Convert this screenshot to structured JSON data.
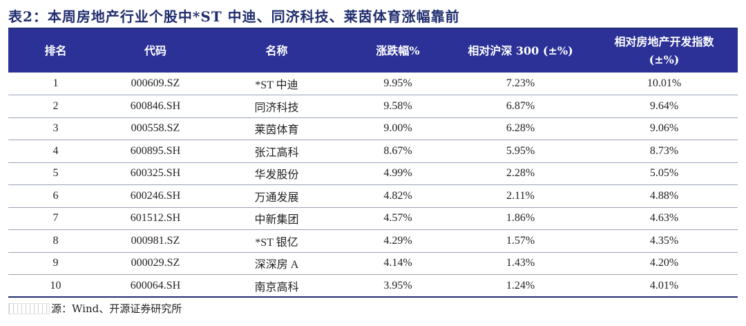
{
  "caption": "表2：本周房地产行业个股中*ST 中迪、同济科技、莱茵体育涨幅靠前",
  "table": {
    "headers": {
      "rank": "排名",
      "code": "代码",
      "name": "名称",
      "change": "涨跌幅%",
      "vs_hs300": "相对沪深 300 (±%)",
      "vs_index_line1": "相对房地产开发指数",
      "vs_index_line2": "(±%)"
    },
    "rows": [
      {
        "rank": "1",
        "code": "000609.SZ",
        "name": "*ST 中迪",
        "change": "9.95%",
        "vs_hs300": "7.23%",
        "vs_index": "10.01%"
      },
      {
        "rank": "2",
        "code": "600846.SH",
        "name": "同济科技",
        "change": "9.58%",
        "vs_hs300": "6.87%",
        "vs_index": "9.64%"
      },
      {
        "rank": "3",
        "code": "000558.SZ",
        "name": "莱茵体育",
        "change": "9.00%",
        "vs_hs300": "6.28%",
        "vs_index": "9.06%"
      },
      {
        "rank": "4",
        "code": "600895.SH",
        "name": "张江高科",
        "change": "8.67%",
        "vs_hs300": "5.95%",
        "vs_index": "8.73%"
      },
      {
        "rank": "5",
        "code": "600325.SH",
        "name": "华发股份",
        "change": "4.99%",
        "vs_hs300": "2.28%",
        "vs_index": "5.05%"
      },
      {
        "rank": "6",
        "code": "600246.SH",
        "name": "万通发展",
        "change": "4.82%",
        "vs_hs300": "2.11%",
        "vs_index": "4.88%"
      },
      {
        "rank": "7",
        "code": "601512.SH",
        "name": "中新集团",
        "change": "4.57%",
        "vs_hs300": "1.86%",
        "vs_index": "4.63%"
      },
      {
        "rank": "8",
        "code": "000981.SZ",
        "name": "*ST 银亿",
        "change": "4.29%",
        "vs_hs300": "1.57%",
        "vs_index": "4.35%"
      },
      {
        "rank": "9",
        "code": "000029.SZ",
        "name": "深深房 A",
        "change": "4.14%",
        "vs_hs300": "1.43%",
        "vs_index": "4.20%"
      },
      {
        "rank": "10",
        "code": "600064.SH",
        "name": "南京高科",
        "change": "3.95%",
        "vs_hs300": "1.24%",
        "vs_index": "4.01%"
      }
    ]
  },
  "source_text": "源：Wind、开源证券研究所",
  "colors": {
    "header_bg": "#2b3196",
    "caption": "#1f2d6e"
  }
}
